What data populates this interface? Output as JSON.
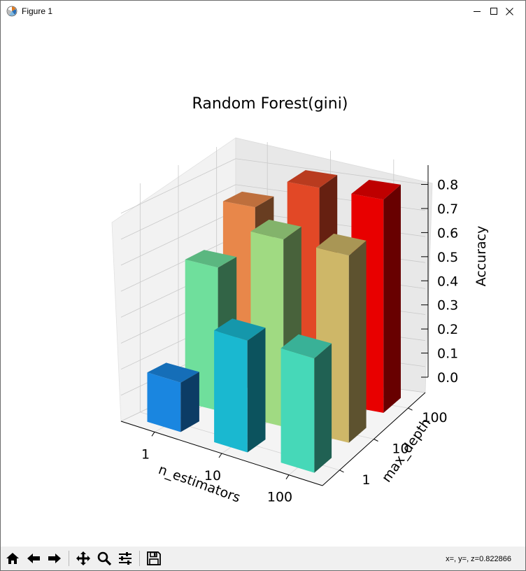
{
  "window": {
    "title": "Figure 1"
  },
  "toolbar": {
    "buttons": [
      "home-icon",
      "back-icon",
      "forward-icon",
      "pan-icon",
      "zoom-icon",
      "configure-icon",
      "save-icon"
    ],
    "coords_readout": "x=, y=, z=0.822866"
  },
  "chart_data": {
    "type": "bar3d",
    "title": "Random Forest(gini)",
    "xlabel": "n_estimators",
    "ylabel": "max_depth",
    "zlabel": "Accuracy",
    "x_ticks": [
      "1",
      "10",
      "100"
    ],
    "y_ticks": [
      "1",
      "10",
      "100"
    ],
    "z_ticks": [
      "0.0",
      "0.1",
      "0.2",
      "0.3",
      "0.4",
      "0.5",
      "0.6",
      "0.7",
      "0.8"
    ],
    "zlim": [
      0,
      0.88
    ],
    "grid": true,
    "bars": [
      {
        "n_estimators": "1",
        "max_depth": "1",
        "value": 0.19,
        "color": "#1a86e0"
      },
      {
        "n_estimators": "10",
        "max_depth": "1",
        "value": 0.43,
        "color": "#1ab8d0"
      },
      {
        "n_estimators": "100",
        "max_depth": "1",
        "value": 0.44,
        "color": "#46d8b8"
      },
      {
        "n_estimators": "1",
        "max_depth": "10",
        "value": 0.55,
        "color": "#6fdf9c"
      },
      {
        "n_estimators": "10",
        "max_depth": "10",
        "value": 0.72,
        "color": "#a0da82"
      },
      {
        "n_estimators": "100",
        "max_depth": "10",
        "value": 0.72,
        "color": "#ceb768"
      },
      {
        "n_estimators": "1",
        "max_depth": "100",
        "value": 0.7,
        "color": "#e8874a"
      },
      {
        "n_estimators": "10",
        "max_depth": "100",
        "value": 0.82,
        "color": "#e24826"
      },
      {
        "n_estimators": "100",
        "max_depth": "100",
        "value": 0.82,
        "color": "#e80000"
      }
    ]
  }
}
